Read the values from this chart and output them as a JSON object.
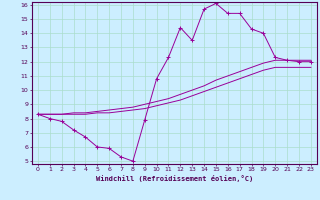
{
  "xlabel": "Windchill (Refroidissement éolien,°C)",
  "ylabel": "",
  "bg_color": "#cceeff",
  "line_color": "#990099",
  "grid_color": "#aaddcc",
  "xlim": [
    -0.5,
    23.5
  ],
  "ylim": [
    4.8,
    16.2
  ],
  "xticks": [
    0,
    1,
    2,
    3,
    4,
    5,
    6,
    7,
    8,
    9,
    10,
    11,
    12,
    13,
    14,
    15,
    16,
    17,
    18,
    19,
    20,
    21,
    22,
    23
  ],
  "yticks": [
    5,
    6,
    7,
    8,
    9,
    10,
    11,
    12,
    13,
    14,
    15,
    16
  ],
  "line1_x": [
    0,
    1,
    2,
    3,
    4,
    5,
    6,
    7,
    8,
    9,
    10,
    11,
    12,
    13,
    14,
    15,
    16,
    17,
    18,
    19,
    20,
    21,
    22,
    23
  ],
  "line1_y": [
    8.3,
    8.0,
    7.8,
    7.2,
    6.7,
    6.0,
    5.9,
    5.3,
    5.0,
    7.9,
    10.8,
    12.3,
    14.4,
    13.5,
    15.7,
    16.1,
    15.4,
    15.4,
    14.3,
    14.0,
    12.3,
    12.1,
    12.0,
    12.0
  ],
  "line2_x": [
    0,
    1,
    2,
    3,
    4,
    5,
    6,
    7,
    8,
    9,
    10,
    11,
    12,
    13,
    14,
    15,
    16,
    17,
    18,
    19,
    20,
    21,
    22,
    23
  ],
  "line2_y": [
    8.3,
    8.3,
    8.3,
    8.4,
    8.4,
    8.5,
    8.6,
    8.7,
    8.8,
    9.0,
    9.2,
    9.4,
    9.7,
    10.0,
    10.3,
    10.7,
    11.0,
    11.3,
    11.6,
    11.9,
    12.1,
    12.1,
    12.1,
    12.1
  ],
  "line3_x": [
    0,
    1,
    2,
    3,
    4,
    5,
    6,
    7,
    8,
    9,
    10,
    11,
    12,
    13,
    14,
    15,
    16,
    17,
    18,
    19,
    20,
    21,
    22,
    23
  ],
  "line3_y": [
    8.3,
    8.3,
    8.3,
    8.3,
    8.3,
    8.4,
    8.4,
    8.5,
    8.6,
    8.7,
    8.9,
    9.1,
    9.3,
    9.6,
    9.9,
    10.2,
    10.5,
    10.8,
    11.1,
    11.4,
    11.6,
    11.6,
    11.6,
    11.6
  ],
  "tick_labelsize": 4.5,
  "xlabel_fontsize": 5.0,
  "spine_color": "#550055",
  "tick_color": "#550055"
}
